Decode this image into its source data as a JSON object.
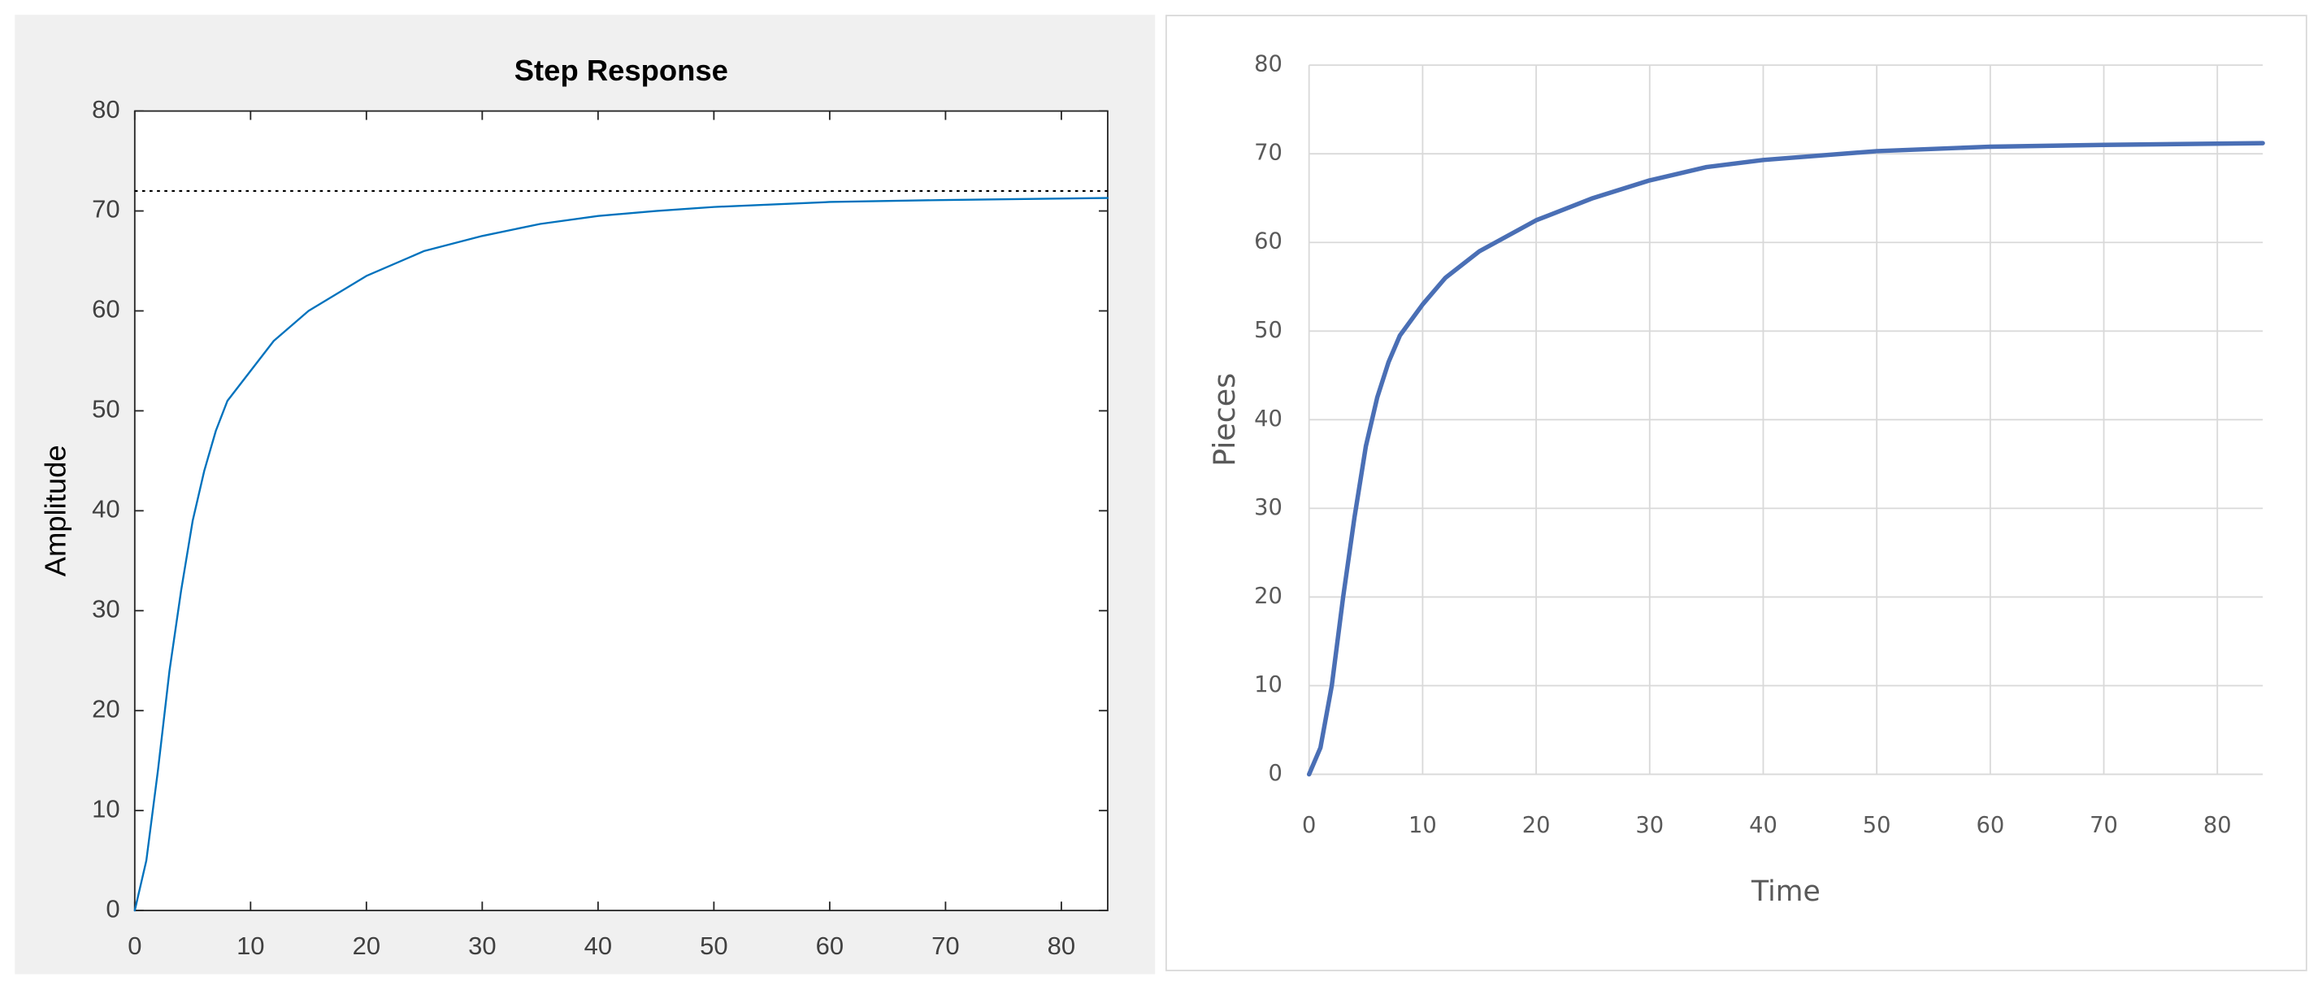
{
  "chart_data": [
    {
      "type": "line",
      "title": "Step Response",
      "y_label": "Amplitude",
      "x": [
        0,
        1,
        2,
        3,
        4,
        5,
        6,
        7,
        8,
        10,
        12,
        15,
        20,
        25,
        30,
        35,
        40,
        45,
        50,
        60,
        70,
        84
      ],
      "values": [
        0,
        5,
        14,
        24,
        32,
        39,
        44,
        48,
        51,
        54,
        57,
        60,
        63.5,
        66,
        67.5,
        68.7,
        69.5,
        70,
        70.4,
        70.9,
        71.1,
        71.3
      ],
      "color": "#0072bd",
      "steady_state": 72,
      "xlim": [
        0,
        84
      ],
      "ylim": [
        0,
        80
      ],
      "xticks": [
        0,
        10,
        20,
        30,
        40,
        50,
        60,
        70,
        80
      ],
      "yticks": [
        0,
        10,
        20,
        30,
        40,
        50,
        60,
        70,
        80
      ],
      "grid": false
    },
    {
      "type": "line",
      "x_label": "Time",
      "y_label": "Pieces",
      "x": [
        0,
        1,
        2,
        3,
        4,
        5,
        6,
        7,
        8,
        10,
        12,
        15,
        20,
        25,
        30,
        35,
        40,
        50,
        60,
        70,
        84
      ],
      "values": [
        0,
        3,
        10,
        20,
        29,
        37,
        42.5,
        46.5,
        49.5,
        53,
        56,
        59,
        62.5,
        65,
        67,
        68.5,
        69.3,
        70.3,
        70.8,
        71,
        71.2
      ],
      "color": "#4a6fb5",
      "xlim": [
        0,
        84
      ],
      "ylim": [
        0,
        80
      ],
      "xticks": [
        0,
        10,
        20,
        30,
        40,
        50,
        60,
        70,
        80
      ],
      "yticks": [
        0,
        10,
        20,
        30,
        40,
        50,
        60,
        70,
        80
      ],
      "grid": true
    }
  ]
}
